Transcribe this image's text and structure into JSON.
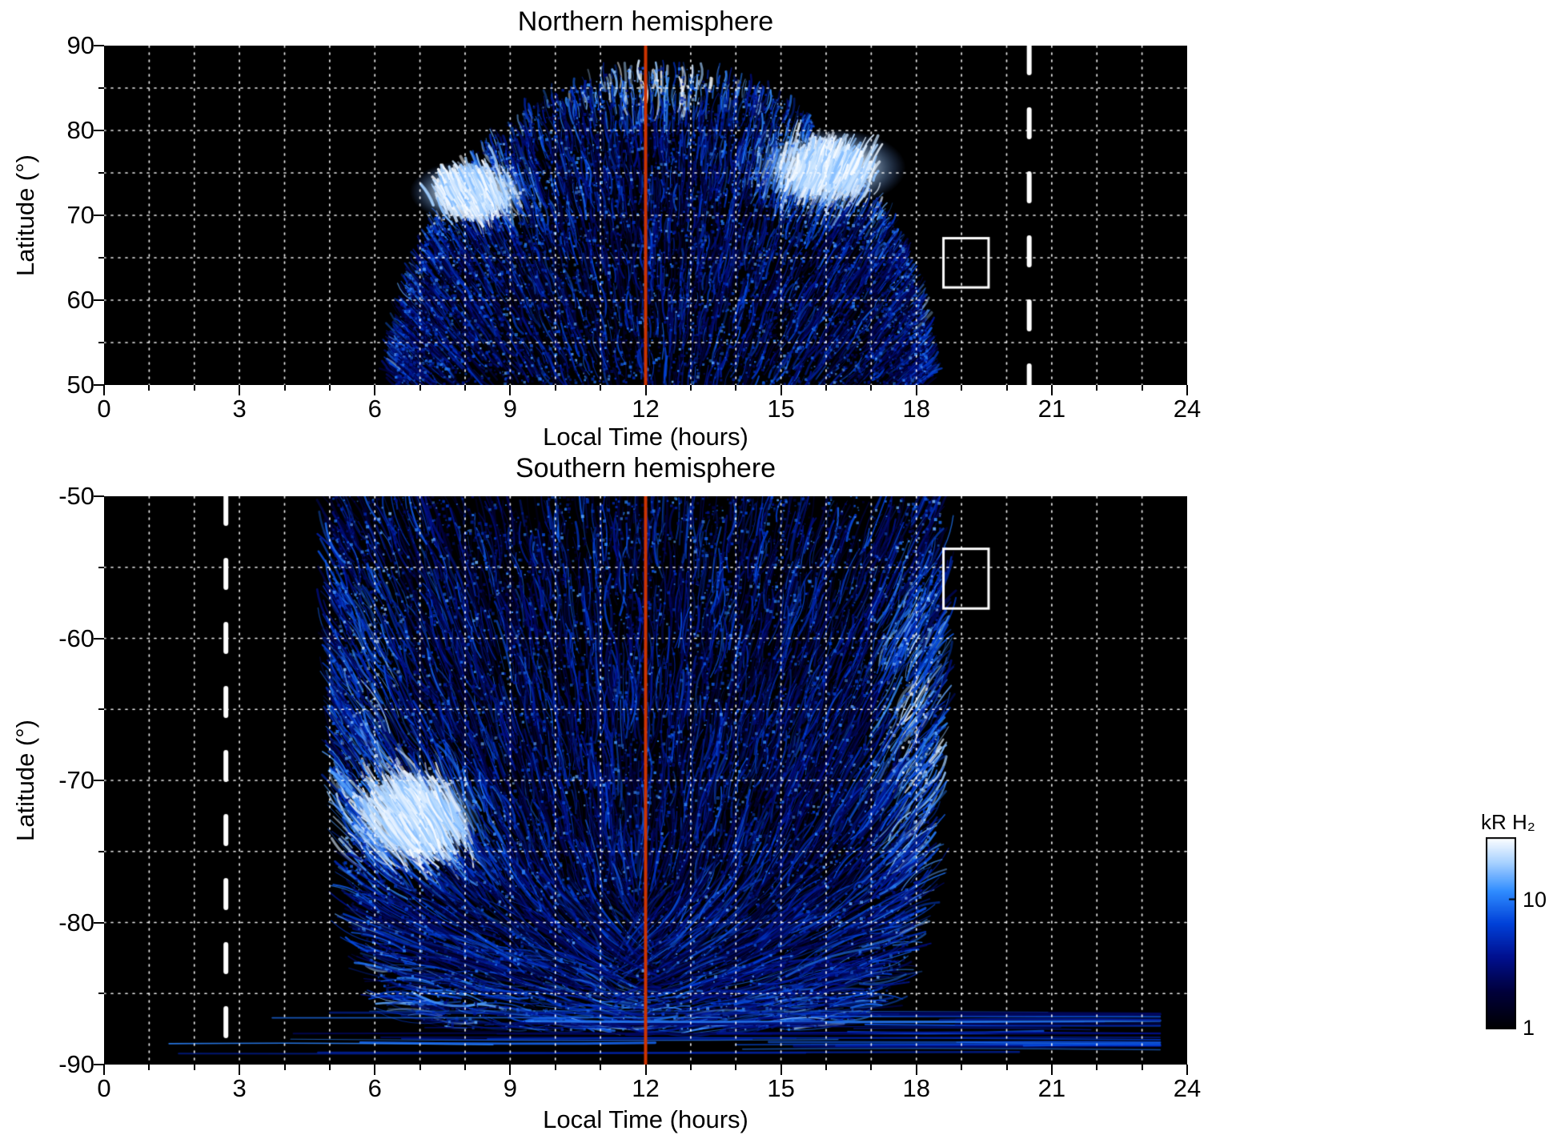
{
  "figure": {
    "background": "#ffffff",
    "plot_background": "#000000"
  },
  "chart_data": [
    {
      "type": "heatmap",
      "title": "Northern hemisphere",
      "xlabel": "Local Time (hours)",
      "ylabel": "Latitude (°)",
      "xlim": [
        0,
        24
      ],
      "ylim": [
        90,
        50
      ],
      "xticks": [
        0,
        3,
        6,
        9,
        12,
        15,
        18,
        21,
        24
      ],
      "yticks": [
        90,
        80,
        70,
        60,
        50
      ],
      "grid": {
        "x_step_hours": 1,
        "y_step_deg": 5,
        "style": "dotted",
        "color": "#ffffff"
      },
      "noon_line": {
        "x": 12,
        "color": "#cc3300"
      },
      "dashed_line": {
        "x": 20.5,
        "color": "#ffffff"
      },
      "selection_box": {
        "lt_min": 18.6,
        "lt_max": 19.6,
        "lat_min": 61.5,
        "lat_max": 67.3
      },
      "emission": {
        "description": "Auroral H2 emission dome between ~6.4 h and ~18.3 h local time, streaky blue texture, brightest white patches on dawn and dusk flanks",
        "lt_range": [
          6.4,
          18.3
        ],
        "base_lat": 50,
        "apex_lat": 87.5,
        "center_lt": 12.35,
        "edge_power": 2,
        "edge_exp": 0.5,
        "focus_lat": 26,
        "streaks": 4200,
        "speckles": 5200,
        "bright_spots": [
          {
            "lt": 8.1,
            "lat": 72.8,
            "lt_radius": 1.15,
            "lat_radius": 3.2,
            "gain": 1.2,
            "core": true
          },
          {
            "lt": 16.1,
            "lat": 75.6,
            "lt_radius": 1.45,
            "lat_radius": 4.0,
            "gain": 1.2,
            "core": true
          },
          {
            "lt": 12.4,
            "lat": 84.5,
            "lt_radius": 1.6,
            "lat_radius": 2.5,
            "gain": 0.5,
            "core": false
          }
        ]
      }
    },
    {
      "type": "heatmap",
      "title": "Southern hemisphere",
      "xlabel": "Local Time (hours)",
      "ylabel": "Latitude (°)",
      "xlim": [
        0,
        24
      ],
      "ylim": [
        -50,
        -90
      ],
      "xticks": [
        0,
        3,
        6,
        9,
        12,
        15,
        18,
        21,
        24
      ],
      "yticks": [
        -50,
        -60,
        -70,
        -80,
        -90
      ],
      "grid": {
        "x_step_hours": 1,
        "y_step_deg": 5,
        "style": "dotted",
        "color": "#ffffff"
      },
      "noon_line": {
        "x": 12,
        "color": "#cc3300"
      },
      "dashed_line": {
        "x": 2.7,
        "color": "#ffffff"
      },
      "selection_box": {
        "lt_min": 18.6,
        "lt_max": 19.6,
        "lat_min": -57.9,
        "lat_max": -53.7
      },
      "emission": {
        "description": "Auroral H2 emission curtain between ~5 h and ~18.6 h local time reaching to the pole, brightest white patch at dawn near -72°, horizontal banded streaks near -87 to -89° spanning nearly all local times",
        "lt_range": [
          5.0,
          18.6
        ],
        "base_lat": -50,
        "apex_lat": -87.6,
        "center_lt": 11.8,
        "edge_power": 8,
        "edge_exp": 0.35,
        "focus_lat": -97,
        "flatten_below_lat": -74,
        "streaks": 5600,
        "speckles": 7200,
        "bright_spots": [
          {
            "lt": 6.9,
            "lat": -72.6,
            "lt_radius": 1.25,
            "lat_radius": 3.0,
            "gain": 1.25,
            "core": true
          },
          {
            "lt": 17.9,
            "lat": -66.0,
            "lt_radius": 0.7,
            "lat_radius": 11.0,
            "gain": 0.45,
            "core": false
          },
          {
            "lt": 5.9,
            "lat": -63.0,
            "lt_radius": 0.6,
            "lat_radius": 9.0,
            "gain": 0.3,
            "core": false
          }
        ],
        "polar_bands": {
          "lat_range": [
            -89.3,
            -86.2
          ],
          "lt_range": [
            0.7,
            23.4
          ],
          "count": 40
        }
      }
    }
  ],
  "colorbar": {
    "label": "kR H₂",
    "scale": "log",
    "range": [
      1,
      30
    ],
    "ticks": [
      "10",
      "1"
    ],
    "tick_values": [
      10,
      1
    ],
    "gradient": [
      {
        "v": 0.0,
        "c": "#000000"
      },
      {
        "v": 0.2,
        "c": "#00003c"
      },
      {
        "v": 0.38,
        "c": "#001090"
      },
      {
        "v": 0.55,
        "c": "#0040d8"
      },
      {
        "v": 0.72,
        "c": "#2f8cff"
      },
      {
        "v": 0.87,
        "c": "#a8d2ff"
      },
      {
        "v": 1.0,
        "c": "#ffffff"
      }
    ]
  }
}
